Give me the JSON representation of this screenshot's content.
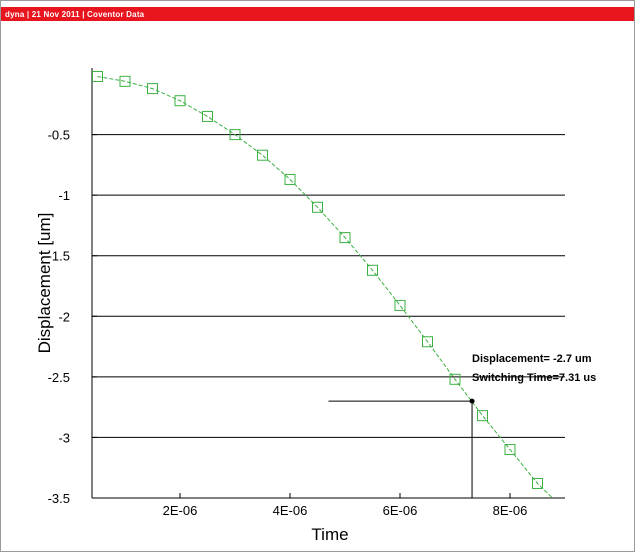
{
  "header": {
    "text": "dyna | 21 Nov 2011 | Coventor Data",
    "color": "#e8141e"
  },
  "chart_data": {
    "type": "line",
    "xlabel": "Time",
    "ylabel": "Displacement [um]",
    "xlim": [
      4e-07,
      9e-06
    ],
    "ylim": [
      -3.5,
      0.05
    ],
    "x_ticks": [
      {
        "value": 2e-06,
        "label": "2E-06"
      },
      {
        "value": 4e-06,
        "label": "4E-06"
      },
      {
        "value": 6e-06,
        "label": "6E-06"
      },
      {
        "value": 8e-06,
        "label": "8E-06"
      }
    ],
    "y_ticks": [
      {
        "value": -0.5,
        "label": "-0.5"
      },
      {
        "value": -1,
        "label": "-1"
      },
      {
        "value": -1.5,
        "label": "-1.5"
      },
      {
        "value": -2,
        "label": "-2"
      },
      {
        "value": -2.5,
        "label": "-2.5"
      },
      {
        "value": -3,
        "label": "-3"
      },
      {
        "value": -3.5,
        "label": "-3.5"
      }
    ],
    "grid": "horizontal",
    "series": [
      {
        "color": "#3cb043",
        "marker": "square",
        "x": [
          5e-07,
          1e-06,
          1.5e-06,
          2e-06,
          2.5e-06,
          3e-06,
          3.5e-06,
          4e-06,
          4.5e-06,
          5e-06,
          5.5e-06,
          6e-06,
          6.5e-06,
          7e-06,
          7.5e-06,
          8e-06,
          8.5e-06,
          9e-06
        ],
        "y": [
          -0.02,
          -0.06,
          -0.12,
          -0.22,
          -0.35,
          -0.5,
          -0.67,
          -0.87,
          -1.1,
          -1.35,
          -1.62,
          -1.91,
          -2.21,
          -2.52,
          -2.82,
          -3.1,
          -3.38,
          -3.6
        ]
      }
    ],
    "annotations": [
      {
        "text": "Displacement= -2.7 um",
        "x": 7.31e-06,
        "y": -2.7
      },
      {
        "text": "Switching Time=7.31 us",
        "x": 7.31e-06,
        "y": -2.7
      }
    ],
    "marker_point": {
      "x": 7.31e-06,
      "y": -2.7
    },
    "guide_x_start": 4.7e-06
  }
}
